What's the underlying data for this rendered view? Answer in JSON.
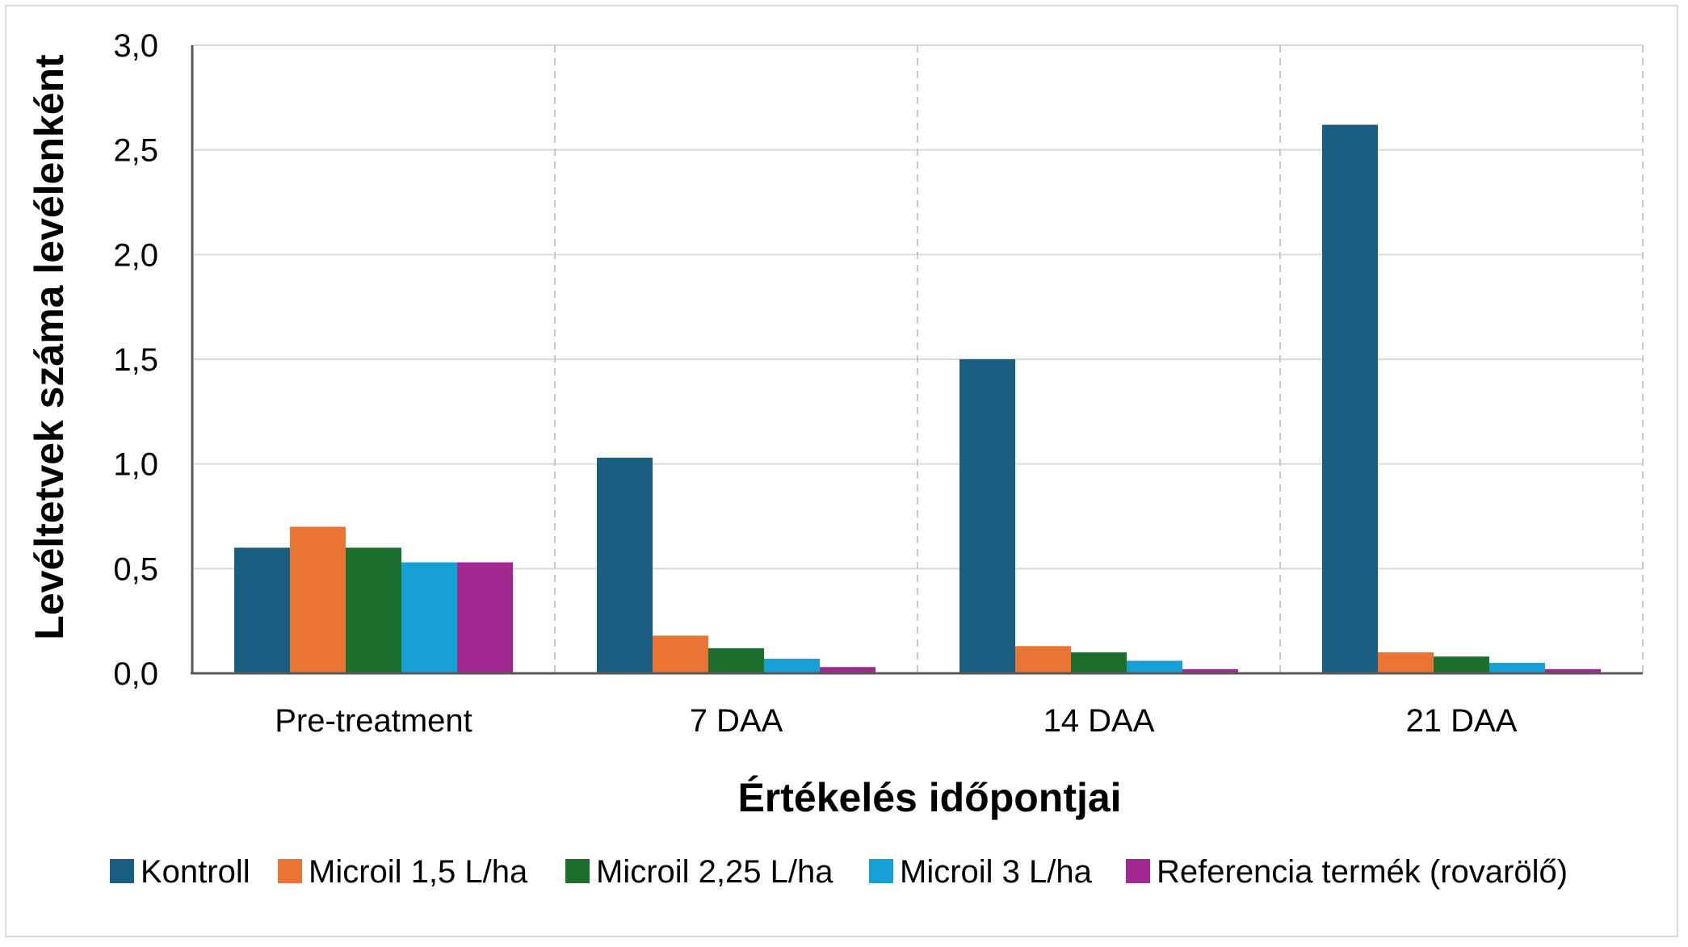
{
  "chart_data": {
    "type": "bar",
    "title": "",
    "xlabel": "Értékelés időpontjai",
    "ylabel": "Levéltetvek száma levélenként",
    "ylim": [
      0,
      3.0
    ],
    "yticks": [
      "0,0",
      "0,5",
      "1,0",
      "1,5",
      "2,0",
      "2,5",
      "3,0"
    ],
    "ytick_values": [
      0,
      0.5,
      1.0,
      1.5,
      2.0,
      2.5,
      3.0
    ],
    "grid": true,
    "legend_position": "bottom",
    "categories": [
      "Pre-treatment",
      "7 DAA",
      "14 DAA",
      "21 DAA"
    ],
    "series": [
      {
        "name": "Kontroll",
        "color": "#1a5f82",
        "values": [
          0.6,
          1.03,
          1.5,
          2.62
        ]
      },
      {
        "name": "Microil 1,5 L/ha",
        "color": "#ea7434",
        "values": [
          0.7,
          0.18,
          0.13,
          0.1
        ]
      },
      {
        "name": "Microil 2,25 L/ha",
        "color": "#1b6e2b",
        "values": [
          0.6,
          0.12,
          0.1,
          0.08
        ]
      },
      {
        "name": "Microil 3 L/ha",
        "color": "#16a0d6",
        "values": [
          0.53,
          0.07,
          0.06,
          0.05
        ]
      },
      {
        "name": "Referencia termék (rovarölő)",
        "color": "#a0288f",
        "values": [
          0.53,
          0.03,
          0.02,
          0.02
        ]
      }
    ]
  }
}
